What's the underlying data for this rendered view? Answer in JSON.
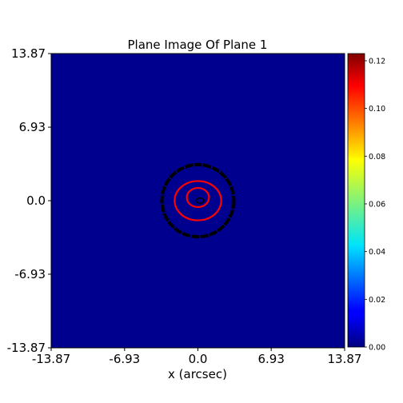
{
  "chart_data": {
    "type": "heatmap",
    "title": "Plane Image Of Plane 1",
    "xlabel": "x (arcsec)",
    "ylabel": "",
    "xlim": [
      -13.87,
      13.87
    ],
    "ylim": [
      -13.87,
      13.87
    ],
    "x_ticks": [
      "-13.87",
      "-6.93",
      "0.0",
      "6.93",
      "13.87"
    ],
    "y_ticks": [
      "13.87",
      "6.93",
      "0.0",
      "-6.93",
      "-13.87"
    ],
    "x_tick_values": [
      -13.87,
      -6.93,
      0.0,
      6.93,
      13.87
    ],
    "y_tick_values": [
      13.87,
      6.93,
      0.0,
      -6.93,
      -13.87
    ],
    "background_value": 0.0,
    "background_color": "#00008f",
    "colormap": "jet",
    "colorbar": {
      "range": [
        0.0,
        0.123
      ],
      "ticks": [
        "0.00",
        "0.02",
        "0.04",
        "0.06",
        "0.08",
        "0.10",
        "0.12"
      ],
      "tick_values": [
        0.0,
        0.02,
        0.04,
        0.06,
        0.08,
        0.1,
        0.12
      ]
    },
    "overlays": [
      {
        "name": "border",
        "color": "#000000",
        "shape": "circle",
        "center": [
          0.0,
          0.0
        ],
        "radius": 3.4
      },
      {
        "name": "critical-curve-outer",
        "color": "#ff0000",
        "shape": "ellipse",
        "center": [
          0.0,
          0.0
        ],
        "rx": 2.2,
        "ry": 1.85
      },
      {
        "name": "critical-curve-inner",
        "color": "#ff0000",
        "shape": "ellipse",
        "center": [
          0.0,
          0.3
        ],
        "rx": 1.05,
        "ry": 0.9
      },
      {
        "name": "caustic",
        "color": "#000000",
        "shape": "ellipse",
        "center": [
          0.2,
          0.0
        ],
        "rx": 0.35,
        "ry": 0.25
      }
    ]
  }
}
